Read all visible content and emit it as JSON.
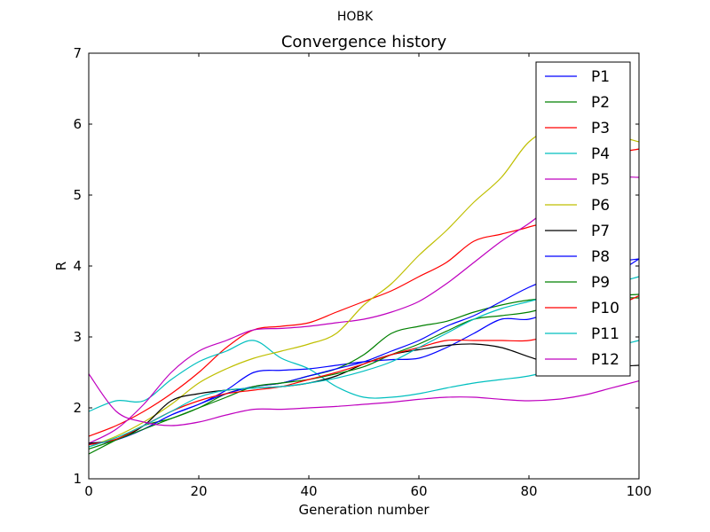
{
  "figure": {
    "suptitle": "HOBK"
  },
  "chart_data": {
    "type": "line",
    "title": "Convergence history",
    "xlabel": "Generation number",
    "ylabel": "R",
    "xlim": [
      0,
      100
    ],
    "ylim": [
      1,
      7
    ],
    "xticks": [
      0,
      20,
      40,
      60,
      80,
      100
    ],
    "yticks": [
      1,
      2,
      3,
      4,
      5,
      6,
      7
    ],
    "grid": false,
    "legend_position": "top-right",
    "x": [
      0,
      5,
      10,
      15,
      20,
      25,
      30,
      35,
      40,
      45,
      50,
      55,
      60,
      65,
      70,
      75,
      80,
      85,
      90,
      95,
      100
    ],
    "series": [
      {
        "name": "P1",
        "color": "#0000ff",
        "values": [
          1.5,
          1.55,
          1.7,
          1.9,
          2.05,
          2.25,
          2.5,
          2.53,
          2.55,
          2.6,
          2.65,
          2.68,
          2.7,
          2.85,
          3.05,
          3.25,
          3.25,
          3.4,
          3.6,
          3.85,
          4.1
        ]
      },
      {
        "name": "P2",
        "color": "#008000",
        "values": [
          1.35,
          1.55,
          1.75,
          1.85,
          2.0,
          2.2,
          2.3,
          2.35,
          2.45,
          2.55,
          2.75,
          3.05,
          3.15,
          3.22,
          3.35,
          3.45,
          3.52,
          3.55,
          3.56,
          3.58,
          3.6
        ]
      },
      {
        "name": "P3",
        "color": "#ff0000",
        "values": [
          1.6,
          1.75,
          1.95,
          2.2,
          2.5,
          2.85,
          3.1,
          3.15,
          3.2,
          3.35,
          3.5,
          3.65,
          3.85,
          4.05,
          4.35,
          4.45,
          4.55,
          4.7,
          5.2,
          5.55,
          5.65
        ]
      },
      {
        "name": "P4",
        "color": "#00bfbf",
        "values": [
          1.95,
          2.1,
          2.1,
          2.4,
          2.65,
          2.8,
          2.95,
          2.7,
          2.55,
          2.3,
          2.15,
          2.15,
          2.2,
          2.28,
          2.35,
          2.4,
          2.45,
          2.55,
          2.7,
          2.85,
          2.95
        ]
      },
      {
        "name": "P5",
        "color": "#bf00bf",
        "values": [
          1.5,
          1.7,
          2.05,
          2.5,
          2.8,
          2.95,
          3.1,
          3.12,
          3.15,
          3.2,
          3.25,
          3.35,
          3.5,
          3.75,
          4.05,
          4.35,
          4.6,
          4.9,
          5.15,
          5.25,
          5.25
        ]
      },
      {
        "name": "P6",
        "color": "#bfbf00",
        "values": [
          1.45,
          1.6,
          1.8,
          2.05,
          2.35,
          2.55,
          2.7,
          2.8,
          2.9,
          3.05,
          3.45,
          3.75,
          4.15,
          4.5,
          4.9,
          5.25,
          5.75,
          5.95,
          5.9,
          5.85,
          5.75
        ]
      },
      {
        "name": "P7",
        "color": "#000000",
        "values": [
          1.5,
          1.55,
          1.75,
          2.1,
          2.2,
          2.25,
          2.28,
          2.3,
          2.35,
          2.45,
          2.62,
          2.75,
          2.82,
          2.88,
          2.9,
          2.85,
          2.72,
          2.6,
          2.55,
          2.58,
          2.6
        ]
      },
      {
        "name": "P8",
        "color": "#0000ff",
        "values": [
          1.48,
          1.55,
          1.7,
          1.9,
          2.05,
          2.2,
          2.3,
          2.35,
          2.45,
          2.55,
          2.65,
          2.8,
          2.95,
          3.15,
          3.3,
          3.5,
          3.7,
          3.85,
          3.95,
          4.05,
          4.1
        ]
      },
      {
        "name": "P9",
        "color": "#008000",
        "values": [
          1.42,
          1.55,
          1.7,
          1.85,
          2.0,
          2.15,
          2.3,
          2.35,
          2.4,
          2.48,
          2.58,
          2.75,
          2.9,
          3.08,
          3.25,
          3.3,
          3.35,
          3.45,
          3.5,
          3.55,
          3.55
        ]
      },
      {
        "name": "P10",
        "color": "#ff0000",
        "values": [
          1.48,
          1.56,
          1.75,
          1.95,
          2.1,
          2.2,
          2.25,
          2.3,
          2.4,
          2.5,
          2.62,
          2.75,
          2.85,
          2.95,
          2.95,
          2.95,
          2.95,
          3.05,
          3.2,
          3.4,
          3.58
        ]
      },
      {
        "name": "P11",
        "color": "#00bfbf",
        "values": [
          1.45,
          1.58,
          1.75,
          1.95,
          2.15,
          2.25,
          2.28,
          2.3,
          2.35,
          2.42,
          2.52,
          2.65,
          2.85,
          3.05,
          3.25,
          3.4,
          3.5,
          3.6,
          3.7,
          3.75,
          3.85
        ]
      },
      {
        "name": "P12",
        "color": "#bf00bf",
        "values": [
          2.48,
          1.95,
          1.8,
          1.75,
          1.8,
          1.9,
          1.98,
          1.98,
          2.0,
          2.02,
          2.05,
          2.08,
          2.12,
          2.15,
          2.15,
          2.12,
          2.1,
          2.12,
          2.18,
          2.28,
          2.38
        ]
      }
    ]
  }
}
